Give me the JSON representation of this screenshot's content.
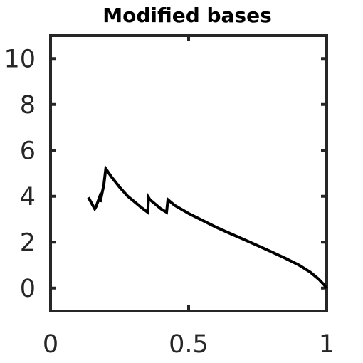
{
  "chart_data": {
    "type": "line",
    "title": "Modified bases",
    "xlabel": "",
    "ylabel": "",
    "xlim": [
      0,
      1
    ],
    "ylim": [
      -1,
      11
    ],
    "grid": false,
    "x_ticks": [
      0,
      0.5,
      1
    ],
    "x_tick_labels": [
      "0",
      "0.5",
      "1"
    ],
    "y_ticks": [
      0,
      2,
      4,
      6,
      8,
      10
    ],
    "y_tick_labels": [
      "0",
      "2",
      "4",
      "6",
      "8",
      "10"
    ],
    "colors": {
      "axes": "#262626",
      "line": "#000000",
      "background": "#ffffff"
    },
    "series": [
      {
        "x": [
          0.137,
          0.16,
          0.165,
          0.183,
          0.18,
          0.193,
          0.2,
          0.22,
          0.25,
          0.28,
          0.31,
          0.33,
          0.352,
          0.355,
          0.36,
          0.38,
          0.4,
          0.42,
          0.425,
          0.43,
          0.45,
          0.5,
          0.55,
          0.6,
          0.65,
          0.7,
          0.75,
          0.8,
          0.85,
          0.9,
          0.94,
          0.97,
          0.99,
          1.0
        ],
        "y": [
          3.95,
          3.45,
          3.55,
          4.15,
          3.75,
          4.5,
          5.2,
          4.85,
          4.4,
          4.0,
          3.7,
          3.5,
          3.3,
          3.95,
          3.85,
          3.65,
          3.45,
          3.3,
          3.85,
          3.8,
          3.6,
          3.25,
          2.95,
          2.65,
          2.38,
          2.12,
          1.85,
          1.58,
          1.3,
          1.0,
          0.7,
          0.4,
          0.15,
          0.0
        ]
      }
    ]
  }
}
